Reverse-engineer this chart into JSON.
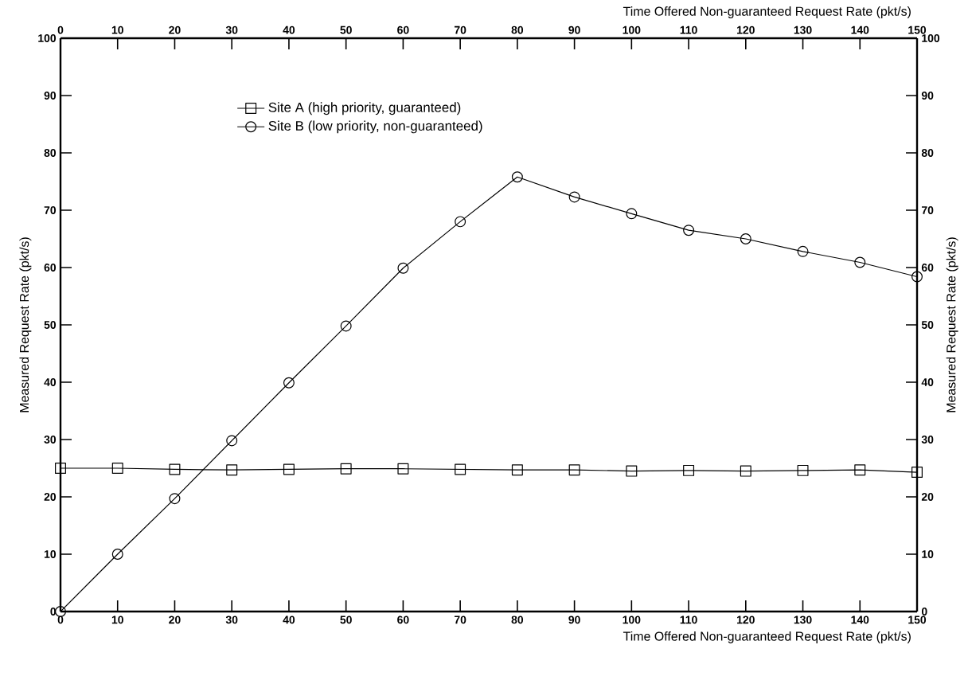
{
  "chart_data": {
    "type": "line",
    "xlabel": "Time Offered Non-guaranteed Request Rate (pkt/s)",
    "x2label": "Time Offered Non-guaranteed Request Rate (pkt/s)",
    "ylabel": "Measured Request Rate (pkt/s)",
    "y2label": "Measured Request Rate (pkt/s)",
    "x": [
      0,
      10,
      20,
      30,
      40,
      50,
      60,
      70,
      80,
      90,
      100,
      110,
      120,
      130,
      140,
      150
    ],
    "series": [
      {
        "name": "Site A (high priority, guaranteed)",
        "color": "#000000",
        "marker": "square",
        "values": [
          25,
          25,
          24.8,
          24.7,
          24.8,
          24.9,
          24.9,
          24.8,
          24.7,
          24.7,
          24.5,
          24.6,
          24.5,
          24.6,
          24.7,
          24.3
        ]
      },
      {
        "name": "Site B (low priority, non-guaranteed)",
        "color": "#000000",
        "marker": "circle",
        "values": [
          0,
          10,
          19.7,
          29.8,
          39.9,
          49.8,
          59.9,
          68,
          75.8,
          72.3,
          69.4,
          66.5,
          65,
          62.8,
          60.9,
          58.4
        ]
      }
    ],
    "xlim": [
      0,
      150
    ],
    "xticks": [
      0,
      10,
      20,
      30,
      40,
      50,
      60,
      70,
      80,
      90,
      100,
      110,
      120,
      130,
      140,
      150
    ],
    "x2lim": [
      0,
      150
    ],
    "x2ticks": [
      0,
      10,
      20,
      30,
      40,
      50,
      60,
      70,
      80,
      90,
      100,
      110,
      120,
      130,
      140,
      150
    ],
    "ylim": [
      0,
      100
    ],
    "yticks": [
      0,
      10,
      20,
      30,
      40,
      50,
      60,
      70,
      80,
      90,
      100
    ],
    "y2lim": [
      0,
      100
    ],
    "y2ticks": [
      0,
      10,
      20,
      30,
      40,
      50,
      60,
      70,
      80,
      90,
      100
    ],
    "legend": "top left",
    "grid": false,
    "line_style": "solid"
  }
}
